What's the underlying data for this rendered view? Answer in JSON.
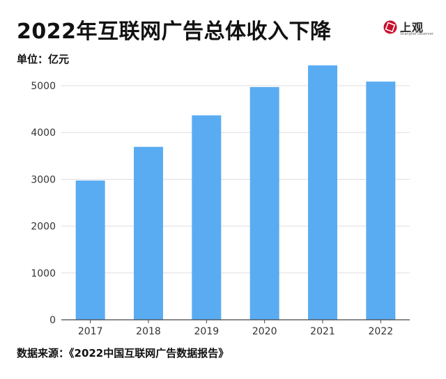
{
  "header": {
    "title": "2022年互联网广告总体收入下降",
    "unit_label": "单位：亿元"
  },
  "logo": {
    "name": "上观",
    "subtitle": "Shanghai Observer",
    "color": "#c8102e"
  },
  "footer": {
    "source": "数据来源：《2022中国互联网广告数据报告》"
  },
  "colors": {
    "bar": "#5aacf2",
    "grid": "#dddddd",
    "axis": "#444444"
  },
  "chart_data": {
    "type": "bar",
    "title": "2022年互联网广告总体收入下降",
    "xlabel": "",
    "ylabel": "单位：亿元",
    "categories": [
      "2017",
      "2018",
      "2019",
      "2020",
      "2021",
      "2022"
    ],
    "values": [
      2975,
      3694,
      4367,
      4971,
      5435,
      5088
    ],
    "ylim": [
      0,
      5500
    ],
    "yticks": [
      0,
      1000,
      2000,
      3000,
      4000,
      5000
    ],
    "grid": true,
    "legend": "none"
  }
}
